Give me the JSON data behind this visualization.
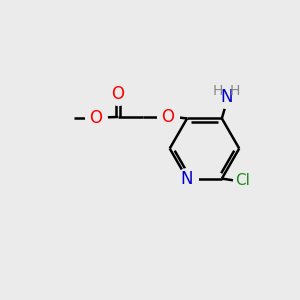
{
  "background_color": "#EBEBEB",
  "bond_color": "#000000",
  "bond_width": 1.8,
  "atom_colors": {
    "O": "#FF0000",
    "N": "#0000CC",
    "Cl": "#228B22",
    "H": "#888888",
    "C": "#000000"
  },
  "font_size": 11,
  "fig_width": 3.0,
  "fig_height": 3.0,
  "dpi": 100
}
